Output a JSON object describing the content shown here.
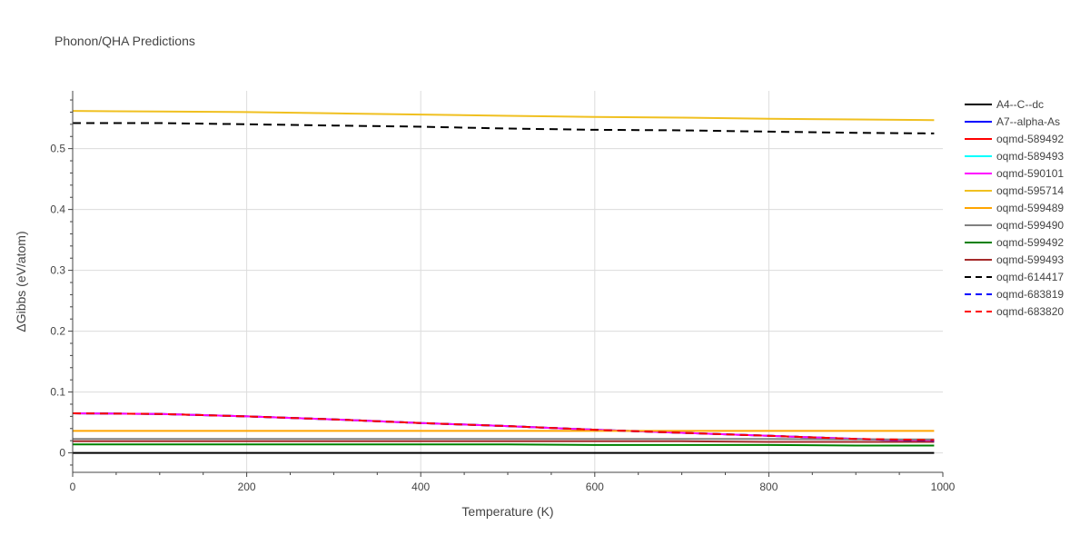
{
  "chart_data": {
    "type": "line",
    "title": "Phonon/QHA Predictions",
    "xlabel": "Temperature (K)",
    "ylabel": "ΔGibbs (eV/atom)",
    "xlim": [
      0,
      1000
    ],
    "ylim": [
      -0.032,
      0.595
    ],
    "x_ticks": [
      0,
      200,
      400,
      600,
      800,
      1000
    ],
    "x_tick_labels": [
      "0",
      "200",
      "400",
      "600",
      "800",
      "1000"
    ],
    "y_ticks": [
      0,
      0.1,
      0.2,
      0.3,
      0.4,
      0.5
    ],
    "y_tick_labels": [
      "0",
      "0.1",
      "0.2",
      "0.3",
      "0.4",
      "0.5"
    ],
    "grid": true,
    "legend_position": "right",
    "x": [
      0,
      100,
      200,
      300,
      400,
      500,
      600,
      700,
      800,
      900,
      990
    ],
    "series": [
      {
        "name": "A4--C--dc",
        "color": "#000000",
        "dash": "solid",
        "values": [
          0,
          0,
          0,
          0,
          0,
          0,
          0,
          0,
          0,
          0,
          0
        ]
      },
      {
        "name": "A7--alpha-As",
        "color": "#0000ff",
        "dash": "solid",
        "values": [
          0.065,
          0.064,
          0.06,
          0.055,
          0.049,
          0.044,
          0.038,
          0.033,
          0.028,
          0.023,
          0.019
        ]
      },
      {
        "name": "oqmd-589492",
        "color": "#ff0000",
        "dash": "solid",
        "values": [
          0.065,
          0.064,
          0.06,
          0.055,
          0.049,
          0.044,
          0.038,
          0.033,
          0.028,
          0.023,
          0.02
        ]
      },
      {
        "name": "oqmd-589493",
        "color": "#00ffff",
        "dash": "solid",
        "values": [
          0.065,
          0.064,
          0.06,
          0.055,
          0.049,
          0.044,
          0.038,
          0.033,
          0.028,
          0.023,
          0.019
        ]
      },
      {
        "name": "oqmd-590101",
        "color": "#ff00ff",
        "dash": "solid",
        "values": [
          0.065,
          0.064,
          0.06,
          0.055,
          0.049,
          0.044,
          0.038,
          0.033,
          0.028,
          0.023,
          0.019
        ]
      },
      {
        "name": "oqmd-595714",
        "color": "#f0c020",
        "dash": "solid",
        "values": [
          0.562,
          0.561,
          0.56,
          0.558,
          0.556,
          0.554,
          0.552,
          0.551,
          0.549,
          0.548,
          0.547
        ]
      },
      {
        "name": "oqmd-599489",
        "color": "#ffa500",
        "dash": "solid",
        "values": [
          0.036,
          0.036,
          0.036,
          0.036,
          0.036,
          0.036,
          0.036,
          0.036,
          0.036,
          0.036,
          0.036
        ]
      },
      {
        "name": "oqmd-599490",
        "color": "#808080",
        "dash": "solid",
        "values": [
          0.023,
          0.023,
          0.023,
          0.023,
          0.023,
          0.023,
          0.023,
          0.023,
          0.023,
          0.022,
          0.022
        ]
      },
      {
        "name": "oqmd-599492",
        "color": "#008000",
        "dash": "solid",
        "values": [
          0.014,
          0.014,
          0.014,
          0.014,
          0.014,
          0.014,
          0.013,
          0.013,
          0.013,
          0.012,
          0.012
        ]
      },
      {
        "name": "oqmd-599493",
        "color": "#a52a2a",
        "dash": "solid",
        "values": [
          0.019,
          0.019,
          0.019,
          0.019,
          0.019,
          0.019,
          0.019,
          0.019,
          0.018,
          0.018,
          0.018
        ]
      },
      {
        "name": "oqmd-614417",
        "color": "#000000",
        "dash": "dash",
        "values": [
          0.542,
          0.542,
          0.54,
          0.538,
          0.536,
          0.533,
          0.531,
          0.53,
          0.528,
          0.526,
          0.525
        ]
      },
      {
        "name": "oqmd-683819",
        "color": "#0000ff",
        "dash": "dash",
        "values": [
          0.065,
          0.064,
          0.06,
          0.055,
          0.049,
          0.044,
          0.038,
          0.033,
          0.028,
          0.023,
          0.02
        ]
      },
      {
        "name": "oqmd-683820",
        "color": "#ff0000",
        "dash": "dash",
        "values": [
          0.065,
          0.064,
          0.06,
          0.055,
          0.049,
          0.044,
          0.038,
          0.033,
          0.028,
          0.023,
          0.021
        ]
      }
    ]
  }
}
